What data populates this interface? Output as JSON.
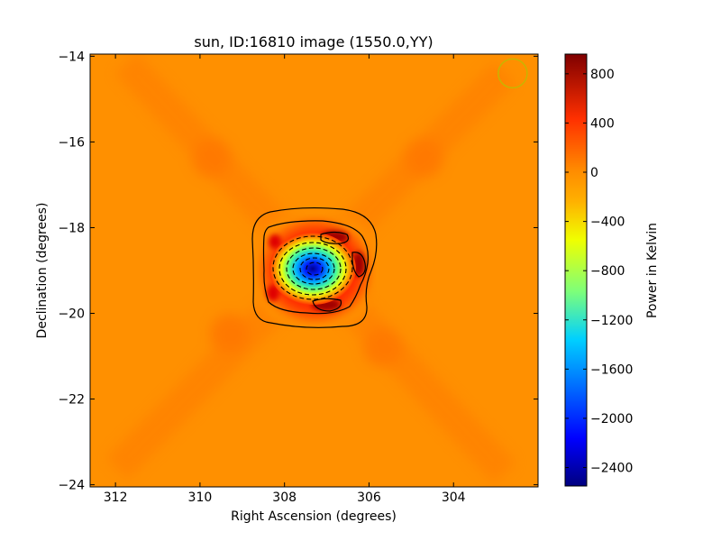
{
  "chart_data": {
    "type": "heatmap",
    "title": "sun, ID:16810 image (1550.0,YY)",
    "xlabel": "Right Ascension (degrees)",
    "ylabel": "Declination (degrees)",
    "xlim": [
      312.6,
      302.0
    ],
    "ylim": [
      -24.05,
      -13.95
    ],
    "x_ticks": [
      312,
      310,
      308,
      306,
      304
    ],
    "x_tick_labels": [
      "312",
      "310",
      "308",
      "306",
      "304"
    ],
    "y_ticks": [
      -14,
      -16,
      -18,
      -20,
      -22,
      -24
    ],
    "y_tick_labels": [
      "−14",
      "−16",
      "−18",
      "−20",
      "−22",
      "−24"
    ],
    "background_level": 100,
    "source": {
      "ra_center": 307.3,
      "dec_center": -19.05,
      "min_value": -2550,
      "ring_value": 900,
      "ring_features": [
        {
          "ra": 306.7,
          "dec": -18.3,
          "value": 950
        },
        {
          "ra": 306.1,
          "dec": -18.95,
          "value": 980
        },
        {
          "ra": 307.0,
          "dec": -19.9,
          "value": 940
        },
        {
          "ra": 308.2,
          "dec": -19.6,
          "value": 700
        },
        {
          "ra": 308.1,
          "dec": -18.4,
          "value": 650
        }
      ]
    },
    "beam_marker": {
      "ra": 302.6,
      "dec": -14.4,
      "color": "#c8b400"
    },
    "colorbar": {
      "label": "Power in Kelvin",
      "range": [
        -2550,
        960
      ],
      "ticks": [
        800,
        400,
        0,
        -400,
        -800,
        -1200,
        -1600,
        -2000,
        -2400
      ],
      "tick_labels": [
        "800",
        "400",
        "0",
        "−400",
        "−800",
        "−1200",
        "−1600",
        "−2000",
        "−2400"
      ],
      "colormap": "jet"
    }
  }
}
